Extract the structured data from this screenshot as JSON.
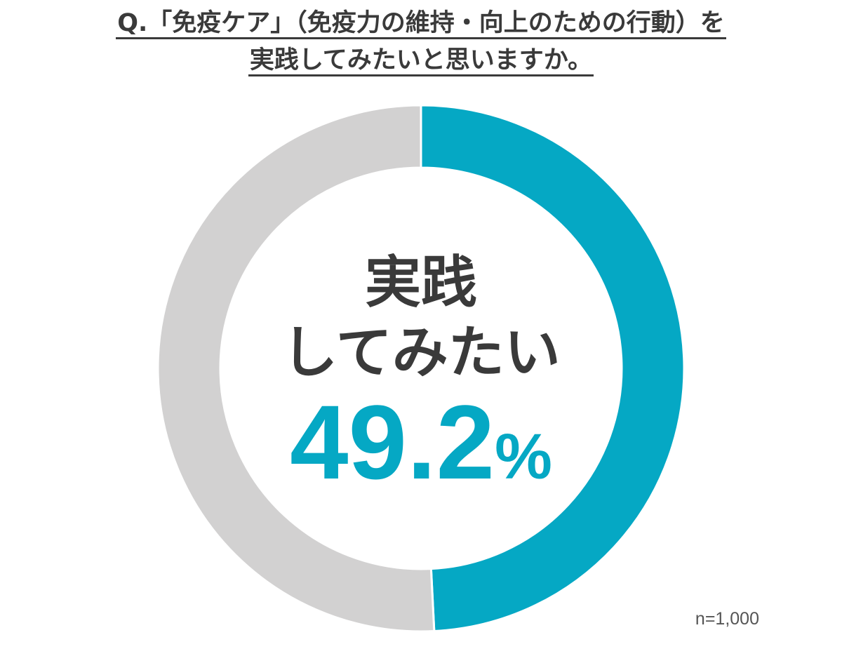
{
  "title": {
    "line1": "Q.「免疫ケア」（免疫力の維持・向上のための行動）を",
    "line2": "実践してみたいと思いますか。"
  },
  "center": {
    "line1": "実践",
    "line2": "してみたい",
    "value": "49.2",
    "unit": "%"
  },
  "sample_size": "n=1,000",
  "colors": {
    "highlight": "#05a8c4",
    "rest": "#d2d1d1",
    "text": "#3a3a3a"
  },
  "chart_data": {
    "type": "pie",
    "title": "Q.「免疫ケア」（免疫力の維持・向上のための行動）を実践してみたいと思いますか。",
    "slices": [
      {
        "name": "実践してみたい",
        "value": 49.2,
        "color": "#05a8c4"
      },
      {
        "name": "",
        "value": 50.8,
        "color": "#d2d1d1"
      }
    ],
    "unit": "%",
    "n": "n=1,000"
  }
}
